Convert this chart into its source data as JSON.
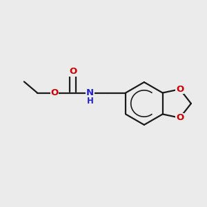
{
  "background_color": "#ebebeb",
  "bond_color": "#1a1a1a",
  "oxygen_color": "#cc0000",
  "nitrogen_color": "#2222cc",
  "bond_width": 1.6,
  "figsize": [
    3.0,
    3.0
  ],
  "dpi": 100,
  "xlim": [
    0.0,
    10.0
  ],
  "ylim": [
    0.0,
    10.0
  ]
}
